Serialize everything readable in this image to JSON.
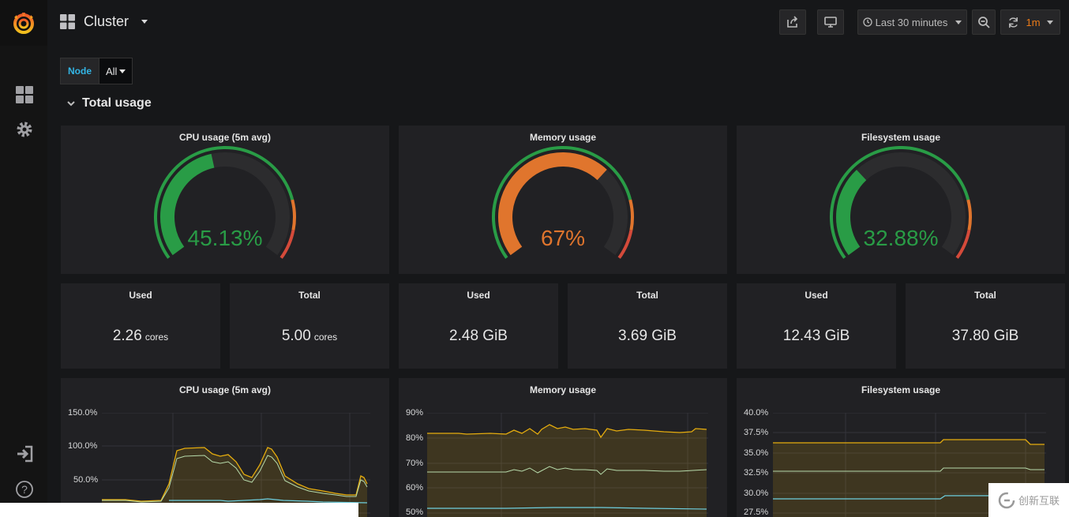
{
  "colors": {
    "green": "#299c46",
    "orange": "#e0752d",
    "red": "#d44a3a",
    "blue": "#33b5e5",
    "yellow": "#e5ac0e"
  },
  "header": {
    "title": "Cluster",
    "time_range": "Last 30 minutes",
    "refresh_interval": "1m"
  },
  "variables": [
    {
      "label": "Node",
      "value": "All"
    }
  ],
  "row": {
    "title": "Total usage"
  },
  "gauges": [
    {
      "title": "CPU usage (5m avg)",
      "value": "45.13%",
      "fraction": 0.4513,
      "color": "#299c46"
    },
    {
      "title": "Memory usage",
      "value": "67%",
      "fraction": 0.67,
      "color": "#e0752d"
    },
    {
      "title": "Filesystem usage",
      "value": "32.88%",
      "fraction": 0.3288,
      "color": "#299c46"
    }
  ],
  "stats": [
    {
      "title": "Used",
      "value": "2.26",
      "unit": "cores"
    },
    {
      "title": "Total",
      "value": "5.00",
      "unit": "cores"
    },
    {
      "title": "Used",
      "value": "2.48 GiB",
      "unit": ""
    },
    {
      "title": "Total",
      "value": "3.69 GiB",
      "unit": ""
    },
    {
      "title": "Used",
      "value": "12.43 GiB",
      "unit": ""
    },
    {
      "title": "Total",
      "value": "37.80 GiB",
      "unit": ""
    }
  ],
  "graphs": [
    {
      "title": "CPU usage (5m avg)",
      "yticks": [
        "150.0%",
        "100.0%",
        "50.0%"
      ]
    },
    {
      "title": "Memory usage",
      "yticks": [
        "90%",
        "80%",
        "70%",
        "60%",
        "50%"
      ]
    },
    {
      "title": "Filesystem usage",
      "yticks": [
        "40.0%",
        "37.5%",
        "35.0%",
        "32.5%",
        "30.0%",
        "27.5%"
      ]
    }
  ],
  "watermark": {
    "text": "创新互联"
  }
}
